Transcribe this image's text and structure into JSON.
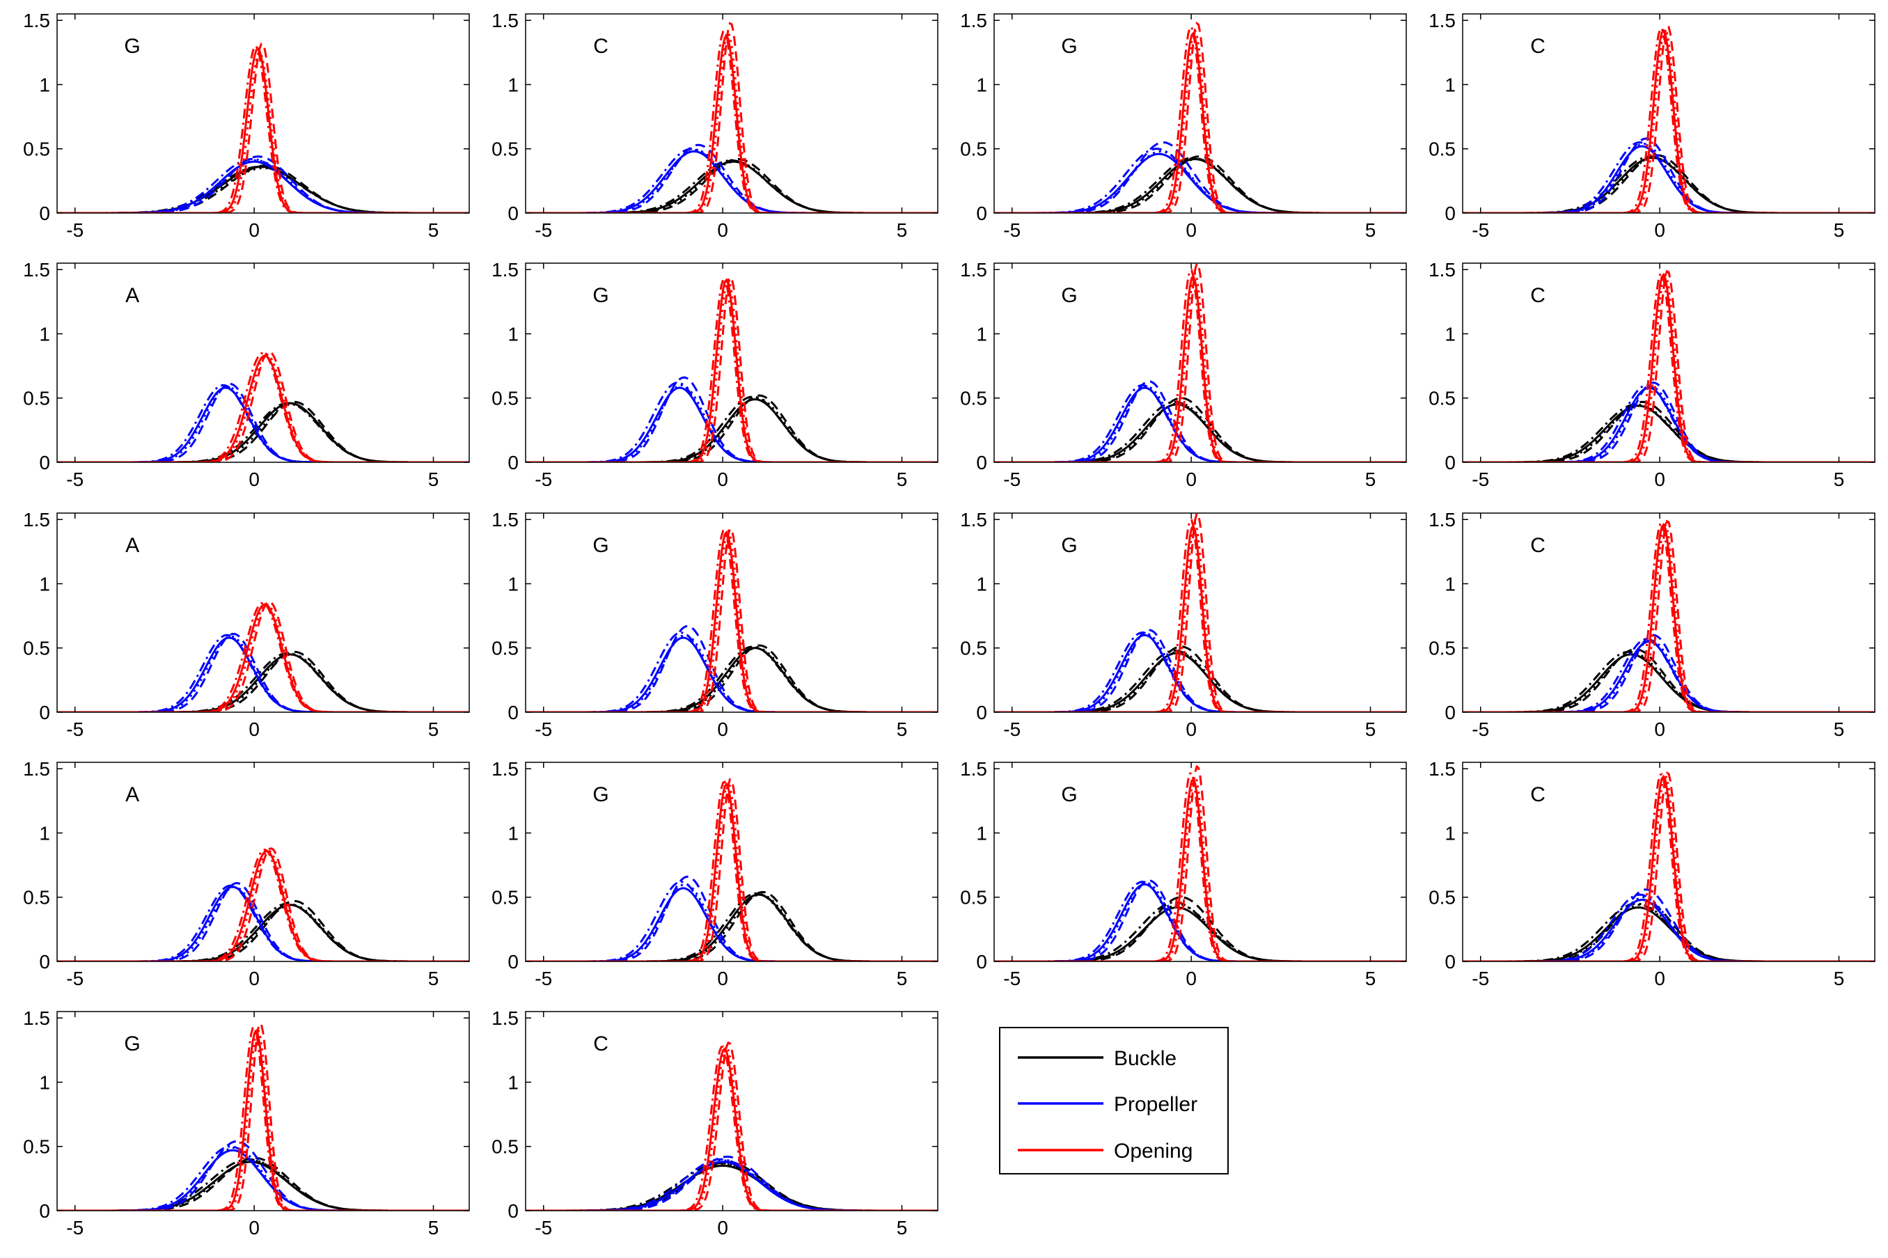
{
  "chart_data": {
    "type": "line",
    "layout": {
      "rows": 5,
      "cols": 4,
      "panel_count": 18
    },
    "xlim": [
      -5.5,
      6
    ],
    "ylim": [
      0,
      1.55
    ],
    "xticks": [
      -5,
      0,
      5
    ],
    "yticks": [
      0,
      0.5,
      1,
      1.5
    ],
    "xtick_labels": [
      "-5",
      "0",
      "5"
    ],
    "ytick_labels": [
      "0",
      "0.5",
      "1",
      "1.5"
    ],
    "legend": {
      "placement": "right-of-bottom-row",
      "entries": [
        {
          "name": "Buckle",
          "color": "#000000"
        },
        {
          "name": "Propeller",
          "color": "#0000ff"
        },
        {
          "name": "Opening",
          "color": "#ff0000"
        }
      ]
    },
    "line_styles": [
      "solid",
      "dashed",
      "dashdot",
      "dotted"
    ],
    "panels": [
      {
        "label": "G",
        "buckle": {
          "mu": 0.2,
          "sigma": 1.1,
          "peaks": [
            0.36,
            0.37,
            0.36,
            0.35
          ]
        },
        "propeller": {
          "mu": 0.0,
          "sigma": 0.95,
          "peaks": [
            0.4,
            0.44,
            0.42,
            0.41
          ]
        },
        "opening": {
          "mu": 0.1,
          "sigma": 0.3,
          "peaks": [
            1.28,
            1.32,
            1.3,
            1.25
          ]
        }
      },
      {
        "label": "C",
        "buckle": {
          "mu": 0.3,
          "sigma": 0.95,
          "peaks": [
            0.4,
            0.42,
            0.41,
            0.4
          ]
        },
        "propeller": {
          "mu": -0.8,
          "sigma": 0.8,
          "peaks": [
            0.48,
            0.53,
            0.5,
            0.49
          ]
        },
        "opening": {
          "mu": 0.1,
          "sigma": 0.27,
          "peaks": [
            1.38,
            1.48,
            1.42,
            1.4
          ]
        }
      },
      {
        "label": "G",
        "buckle": {
          "mu": 0.1,
          "sigma": 0.92,
          "peaks": [
            0.42,
            0.44,
            0.43,
            0.42
          ]
        },
        "propeller": {
          "mu": -0.9,
          "sigma": 0.85,
          "peaks": [
            0.46,
            0.55,
            0.5,
            0.48
          ]
        },
        "opening": {
          "mu": 0.05,
          "sigma": 0.26,
          "peaks": [
            1.4,
            1.48,
            1.45,
            1.42
          ]
        }
      },
      {
        "label": "C",
        "buckle": {
          "mu": -0.2,
          "sigma": 0.9,
          "peaks": [
            0.43,
            0.45,
            0.44,
            0.43
          ]
        },
        "propeller": {
          "mu": -0.5,
          "sigma": 0.7,
          "peaks": [
            0.52,
            0.58,
            0.55,
            0.54
          ]
        },
        "opening": {
          "mu": 0.1,
          "sigma": 0.27,
          "peaks": [
            1.42,
            1.46,
            1.44,
            1.43
          ]
        }
      },
      {
        "label": "A",
        "buckle": {
          "mu": 1.0,
          "sigma": 0.85,
          "peaks": [
            0.46,
            0.47,
            0.46,
            0.45
          ]
        },
        "propeller": {
          "mu": -0.8,
          "sigma": 0.65,
          "peaks": [
            0.58,
            0.61,
            0.6,
            0.59
          ]
        },
        "opening": {
          "mu": 0.3,
          "sigma": 0.47,
          "peaks": [
            0.83,
            0.86,
            0.85,
            0.84
          ]
        }
      },
      {
        "label": "G",
        "buckle": {
          "mu": 0.9,
          "sigma": 0.8,
          "peaks": [
            0.49,
            0.52,
            0.51,
            0.5
          ]
        },
        "propeller": {
          "mu": -1.2,
          "sigma": 0.65,
          "peaks": [
            0.58,
            0.66,
            0.62,
            0.6
          ]
        },
        "opening": {
          "mu": 0.1,
          "sigma": 0.27,
          "peaks": [
            1.42,
            1.44,
            1.43,
            1.42
          ]
        }
      },
      {
        "label": "G",
        "buckle": {
          "mu": -0.4,
          "sigma": 0.85,
          "peaks": [
            0.45,
            0.5,
            0.47,
            0.46
          ]
        },
        "propeller": {
          "mu": -1.3,
          "sigma": 0.65,
          "peaks": [
            0.58,
            0.63,
            0.6,
            0.59
          ]
        },
        "opening": {
          "mu": 0.05,
          "sigma": 0.25,
          "peaks": [
            1.45,
            1.55,
            1.5,
            1.47
          ]
        }
      },
      {
        "label": "C",
        "buckle": {
          "mu": -0.6,
          "sigma": 0.9,
          "peaks": [
            0.44,
            0.47,
            0.45,
            0.44
          ]
        },
        "propeller": {
          "mu": -0.3,
          "sigma": 0.65,
          "peaks": [
            0.58,
            0.62,
            0.6,
            0.59
          ]
        },
        "opening": {
          "mu": 0.1,
          "sigma": 0.27,
          "peaks": [
            1.46,
            1.49,
            1.47,
            1.46
          ]
        }
      },
      {
        "label": "A",
        "buckle": {
          "mu": 1.0,
          "sigma": 0.85,
          "peaks": [
            0.45,
            0.47,
            0.46,
            0.45
          ]
        },
        "propeller": {
          "mu": -0.7,
          "sigma": 0.65,
          "peaks": [
            0.58,
            0.61,
            0.6,
            0.59
          ]
        },
        "opening": {
          "mu": 0.3,
          "sigma": 0.47,
          "peaks": [
            0.84,
            0.86,
            0.85,
            0.84
          ]
        }
      },
      {
        "label": "G",
        "buckle": {
          "mu": 0.9,
          "sigma": 0.8,
          "peaks": [
            0.5,
            0.52,
            0.51,
            0.5
          ]
        },
        "propeller": {
          "mu": -1.1,
          "sigma": 0.65,
          "peaks": [
            0.58,
            0.67,
            0.62,
            0.6
          ]
        },
        "opening": {
          "mu": 0.1,
          "sigma": 0.27,
          "peaks": [
            1.4,
            1.43,
            1.42,
            1.41
          ]
        }
      },
      {
        "label": "G",
        "buckle": {
          "mu": -0.4,
          "sigma": 0.85,
          "peaks": [
            0.46,
            0.51,
            0.48,
            0.47
          ]
        },
        "propeller": {
          "mu": -1.3,
          "sigma": 0.65,
          "peaks": [
            0.6,
            0.64,
            0.62,
            0.61
          ]
        },
        "opening": {
          "mu": 0.05,
          "sigma": 0.25,
          "peaks": [
            1.45,
            1.55,
            1.5,
            1.47
          ]
        }
      },
      {
        "label": "C",
        "buckle": {
          "mu": -0.8,
          "sigma": 0.85,
          "peaks": [
            0.45,
            0.49,
            0.47,
            0.46
          ]
        },
        "propeller": {
          "mu": -0.3,
          "sigma": 0.65,
          "peaks": [
            0.55,
            0.6,
            0.57,
            0.56
          ]
        },
        "opening": {
          "mu": 0.1,
          "sigma": 0.27,
          "peaks": [
            1.46,
            1.49,
            1.47,
            1.46
          ]
        }
      },
      {
        "label": "A",
        "buckle": {
          "mu": 1.0,
          "sigma": 0.85,
          "peaks": [
            0.44,
            0.47,
            0.45,
            0.44
          ]
        },
        "propeller": {
          "mu": -0.6,
          "sigma": 0.65,
          "peaks": [
            0.58,
            0.61,
            0.59,
            0.58
          ]
        },
        "opening": {
          "mu": 0.35,
          "sigma": 0.45,
          "peaks": [
            0.86,
            0.88,
            0.87,
            0.86
          ]
        }
      },
      {
        "label": "G",
        "buckle": {
          "mu": 1.0,
          "sigma": 0.8,
          "peaks": [
            0.52,
            0.54,
            0.53,
            0.52
          ]
        },
        "propeller": {
          "mu": -1.1,
          "sigma": 0.65,
          "peaks": [
            0.57,
            0.66,
            0.62,
            0.6
          ]
        },
        "opening": {
          "mu": 0.1,
          "sigma": 0.27,
          "peaks": [
            1.38,
            1.42,
            1.4,
            1.39
          ]
        }
      },
      {
        "label": "G",
        "buckle": {
          "mu": -0.4,
          "sigma": 0.9,
          "peaks": [
            0.42,
            0.5,
            0.46,
            0.44
          ]
        },
        "propeller": {
          "mu": -1.3,
          "sigma": 0.65,
          "peaks": [
            0.6,
            0.63,
            0.62,
            0.61
          ]
        },
        "opening": {
          "mu": 0.05,
          "sigma": 0.26,
          "peaks": [
            1.42,
            1.52,
            1.47,
            1.44
          ]
        }
      },
      {
        "label": "C",
        "buckle": {
          "mu": -0.6,
          "sigma": 0.9,
          "peaks": [
            0.42,
            0.48,
            0.45,
            0.44
          ]
        },
        "propeller": {
          "mu": -0.5,
          "sigma": 0.75,
          "peaks": [
            0.48,
            0.56,
            0.52,
            0.5
          ]
        },
        "opening": {
          "mu": 0.1,
          "sigma": 0.27,
          "peaks": [
            1.44,
            1.47,
            1.46,
            1.45
          ]
        }
      },
      {
        "label": "G",
        "buckle": {
          "mu": -0.1,
          "sigma": 1.0,
          "peaks": [
            0.38,
            0.41,
            0.4,
            0.39
          ]
        },
        "propeller": {
          "mu": -0.6,
          "sigma": 0.8,
          "peaks": [
            0.47,
            0.54,
            0.5,
            0.49
          ]
        },
        "opening": {
          "mu": 0.05,
          "sigma": 0.26,
          "peaks": [
            1.4,
            1.46,
            1.43,
            1.41
          ]
        }
      },
      {
        "label": "C",
        "buckle": {
          "mu": 0.0,
          "sigma": 1.1,
          "peaks": [
            0.35,
            0.38,
            0.37,
            0.36
          ]
        },
        "propeller": {
          "mu": 0.0,
          "sigma": 1.0,
          "peaks": [
            0.38,
            0.42,
            0.4,
            0.39
          ]
        },
        "opening": {
          "mu": 0.05,
          "sigma": 0.3,
          "peaks": [
            1.26,
            1.31,
            1.28,
            1.27
          ]
        }
      }
    ]
  }
}
